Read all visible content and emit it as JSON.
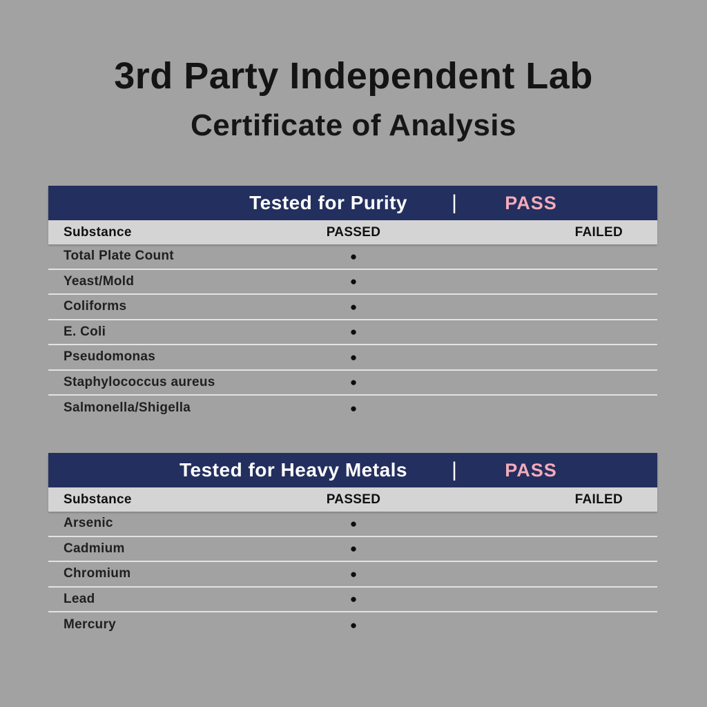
{
  "header": {
    "title": "3rd Party Independent Lab",
    "subtitle": "Certificate of Analysis"
  },
  "colors": {
    "background": "#a2a2a2",
    "banner_bg": "#232f5e",
    "banner_text": "#ffffff",
    "pass_text": "#f3abba",
    "column_band_bg": "#d4d4d4",
    "row_divider": "#e3e3e3",
    "text": "#1d1d1d"
  },
  "tables": [
    {
      "banner": {
        "title": "Tested for Purity",
        "divider": "|",
        "status": "PASS"
      },
      "columns": {
        "substance": "Substance",
        "passed": "PASSED",
        "failed": "FAILED"
      },
      "rows": [
        {
          "substance": "Total Plate Count",
          "passed": "●",
          "failed": ""
        },
        {
          "substance": "Yeast/Mold",
          "passed": "●",
          "failed": ""
        },
        {
          "substance": "Coliforms",
          "passed": "●",
          "failed": ""
        },
        {
          "substance": "E. Coli",
          "passed": "●",
          "failed": ""
        },
        {
          "substance": "Pseudomonas",
          "passed": "●",
          "failed": ""
        },
        {
          "substance": "Staphylococcus aureus",
          "passed": "●",
          "failed": ""
        },
        {
          "substance": "Salmonella/Shigella",
          "passed": "●",
          "failed": ""
        }
      ]
    },
    {
      "banner": {
        "title": "Tested for Heavy Metals",
        "divider": "|",
        "status": "PASS"
      },
      "columns": {
        "substance": "Substance",
        "passed": "PASSED",
        "failed": "FAILED"
      },
      "rows": [
        {
          "substance": "Arsenic",
          "passed": "●",
          "failed": ""
        },
        {
          "substance": "Cadmium",
          "passed": "●",
          "failed": ""
        },
        {
          "substance": "Chromium",
          "passed": "●",
          "failed": ""
        },
        {
          "substance": "Lead",
          "passed": "●",
          "failed": ""
        },
        {
          "substance": "Mercury",
          "passed": "●",
          "failed": ""
        }
      ]
    }
  ]
}
